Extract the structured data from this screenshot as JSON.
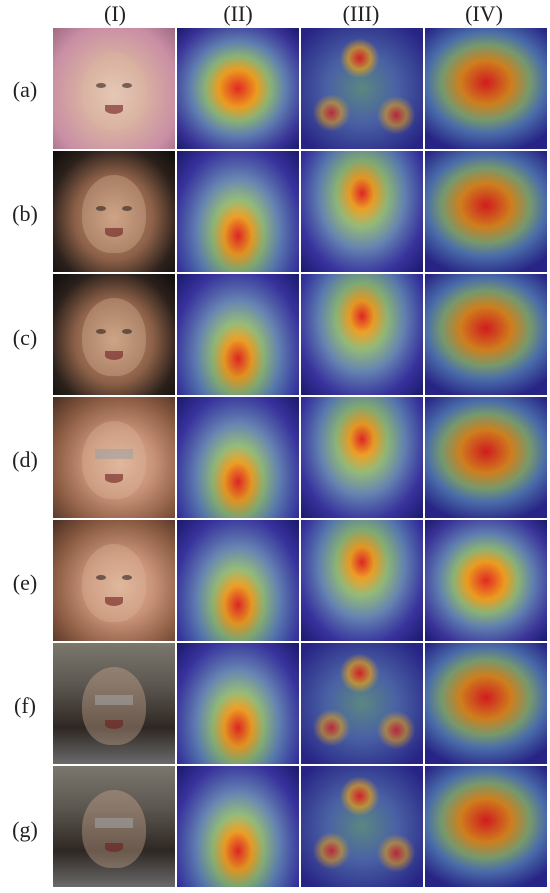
{
  "columns": [
    "(I)",
    "(II)",
    "(III)",
    "(IV)"
  ],
  "rows": [
    "(a)",
    "(b)",
    "(c)",
    "(d)",
    "(e)",
    "(f)",
    "(g)"
  ]
}
